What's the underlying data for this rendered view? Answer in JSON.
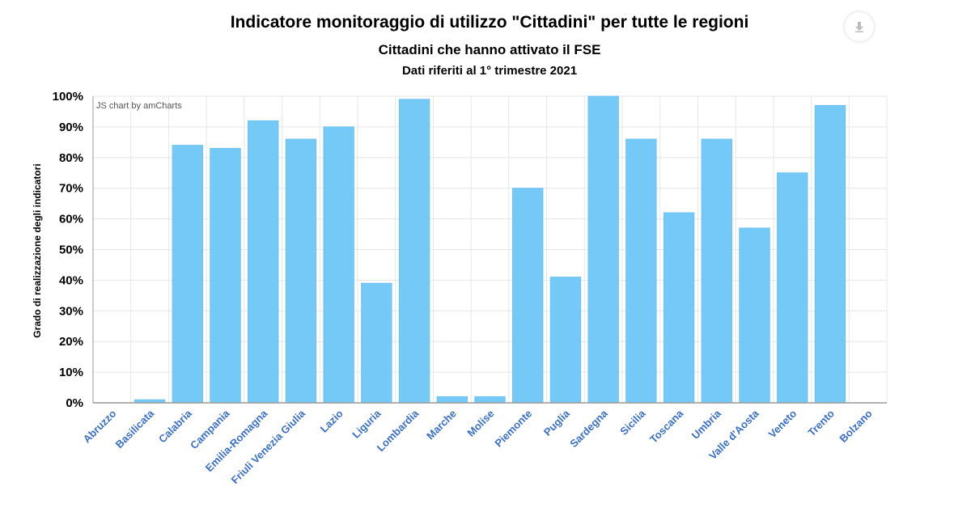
{
  "titles": {
    "title": "Indicatore monitoraggio di utilizzo \"Cittadini\" per tutte le regioni",
    "subtitle": "Cittadini che hanno attivato il FSE",
    "subtitle2": "Dati riferiti al 1° trimestre 2021"
  },
  "credit": "JS chart by amCharts",
  "download_icon": "download-icon",
  "colors": {
    "bar": "#74c9f7",
    "bar_stroke": "#6cc1f0",
    "grid": "#e6e6e6",
    "x_label": "#3a6fc6",
    "axis": "#999999"
  },
  "chart_data": {
    "type": "bar",
    "title": "Indicatore monitoraggio di utilizzo \"Cittadini\" per tutte le regioni",
    "subtitle": "Cittadini che hanno attivato il FSE",
    "xlabel": "",
    "ylabel": "Grado di realizzazione degli indicatori",
    "ylim": [
      0,
      100
    ],
    "yticks": [
      "0%",
      "10%",
      "20%",
      "30%",
      "40%",
      "50%",
      "60%",
      "70%",
      "80%",
      "90%",
      "100%"
    ],
    "grid": true,
    "categories": [
      "Abruzzo",
      "Basilicata",
      "Calabria",
      "Campania",
      "Emilia-Romagna",
      "Friuli Venezia Giulia",
      "Lazio",
      "Liguria",
      "Lombardia",
      "Marche",
      "Molise",
      "Piemonte",
      "Puglia",
      "Sardegna",
      "Sicilia",
      "Toscana",
      "Umbria",
      "Valle d'Aosta",
      "Veneto",
      "Trento",
      "Bolzano"
    ],
    "values": [
      0,
      1,
      84,
      83,
      92,
      86,
      90,
      39,
      99,
      2,
      2,
      70,
      41,
      100,
      86,
      62,
      86,
      57,
      75,
      97,
      0
    ]
  }
}
